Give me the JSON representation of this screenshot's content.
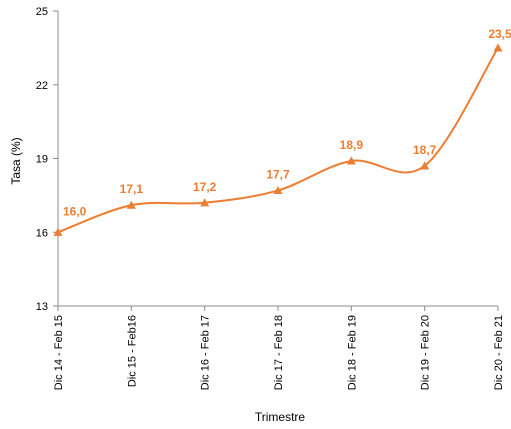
{
  "chart_data": {
    "type": "line",
    "title": "",
    "xlabel": "Trimestre",
    "ylabel": "Tasa (%)",
    "categories": [
      "Dic 14 - Feb 15",
      "Dic 15 - Feb16",
      "Dic 16 - Feb 17",
      "Dic 17 - Feb 18",
      "Dic 18 - Feb 19",
      "Dic 19 - Feb 20",
      "Dic 20 - Feb 21"
    ],
    "series": [
      {
        "values": [
          16.0,
          17.1,
          17.2,
          17.7,
          18.9,
          18.7,
          23.5
        ],
        "labels": [
          "16,0",
          "17,1",
          "17,2",
          "17,7",
          "18,9",
          "18,7",
          "23,5"
        ],
        "color": "#ed7d31",
        "marker": "triangle",
        "smooth": true
      }
    ],
    "ylim": [
      13,
      25
    ],
    "yticks": [
      13,
      16,
      19,
      22,
      25
    ],
    "grid": false,
    "legend": "none"
  }
}
